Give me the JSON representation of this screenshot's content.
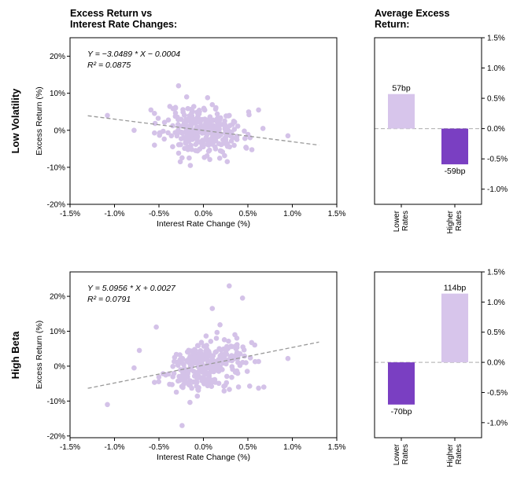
{
  "colors": {
    "point": "#d4c2e8",
    "bar_light": "#d7c5eb",
    "bar_dark": "#7a3fc2",
    "trend": "#999999",
    "zero_line": "#bbbbbb"
  },
  "titles": {
    "scatter": [
      "Excess Return vs",
      "Interest Rate Changes:"
    ],
    "bar": [
      "Average Excess",
      "Return:"
    ]
  },
  "chart_data": [
    {
      "type": "scatter",
      "row": "Low Volatility",
      "xlabel": "Interest Rate Change (%)",
      "ylabel": "Excess Return (%)",
      "xlim": [
        -1.5,
        1.5
      ],
      "ylim": [
        -20,
        25
      ],
      "xticks": [
        "-1.5%",
        "-1.0%",
        "-0.5%",
        "0.0%",
        "0.5%",
        "1.0%",
        "1.5%"
      ],
      "yticks": [
        "-20%",
        "-10%",
        "0%",
        "10%",
        "20%"
      ],
      "equation": "Y = −3.0489 * X − 0.0004",
      "r2": "R² = 0.0875",
      "slope": -3.0489,
      "intercept": -0.04,
      "point_cloud_seed": 11,
      "point_count": 300,
      "extreme_points": [
        [
          -1.08,
          4
        ],
        [
          0.95,
          -1.5
        ],
        [
          -0.28,
          12
        ],
        [
          -0.26,
          -8.5
        ],
        [
          0.62,
          5.5
        ],
        [
          0.67,
          0.5
        ],
        [
          -0.78,
          0
        ],
        [
          -0.59,
          5.5
        ]
      ]
    },
    {
      "type": "bar",
      "row": "Low Volatility",
      "categories": [
        "Lower Rates",
        "Higher Rates"
      ],
      "values": [
        0.57,
        -0.59
      ],
      "data_labels": [
        "57bp",
        "-59bp"
      ],
      "ylim": [
        -1.25,
        1.5
      ],
      "yticks": [
        "-1.0%",
        "-0.5%",
        "0.0%",
        "0.5%",
        "1.0%",
        "1.5%"
      ]
    },
    {
      "type": "scatter",
      "row": "High Beta",
      "xlabel": "Interest Rate Change (%)",
      "ylabel": "Excess Return (%)",
      "xlim": [
        -1.5,
        1.5
      ],
      "ylim": [
        -20.5,
        27
      ],
      "xticks": [
        "-1.5%",
        "-1.0%",
        "-0.5%",
        "0.0%",
        "0.5%",
        "1.0%",
        "1.5%"
      ],
      "yticks": [
        "-20%",
        "-10%",
        "0%",
        "10%",
        "20%"
      ],
      "equation": "Y = 5.0956 * X + 0.0027",
      "r2": "R² = 0.0791",
      "slope": 5.0956,
      "intercept": 0.27,
      "point_cloud_seed": 29,
      "point_count": 300,
      "extreme_points": [
        [
          -1.08,
          -11
        ],
        [
          0.95,
          2.2
        ],
        [
          0.29,
          23
        ],
        [
          0.44,
          19.5
        ],
        [
          0.1,
          16.5
        ],
        [
          -0.24,
          -17
        ],
        [
          -0.53,
          11.2
        ],
        [
          -0.72,
          4.5
        ],
        [
          -0.78,
          -0.5
        ],
        [
          0.68,
          -6
        ],
        [
          0.62,
          -6.3
        ]
      ]
    },
    {
      "type": "bar",
      "row": "High Beta",
      "categories": [
        "Lower Rates",
        "Higher Rates"
      ],
      "values": [
        -0.7,
        1.14
      ],
      "data_labels": [
        "-70bp",
        "114bp"
      ],
      "ylim": [
        -1.25,
        1.5
      ],
      "yticks": [
        "-1.0%",
        "-0.5%",
        "0.0%",
        "0.5%",
        "1.0%",
        "1.5%"
      ]
    }
  ]
}
